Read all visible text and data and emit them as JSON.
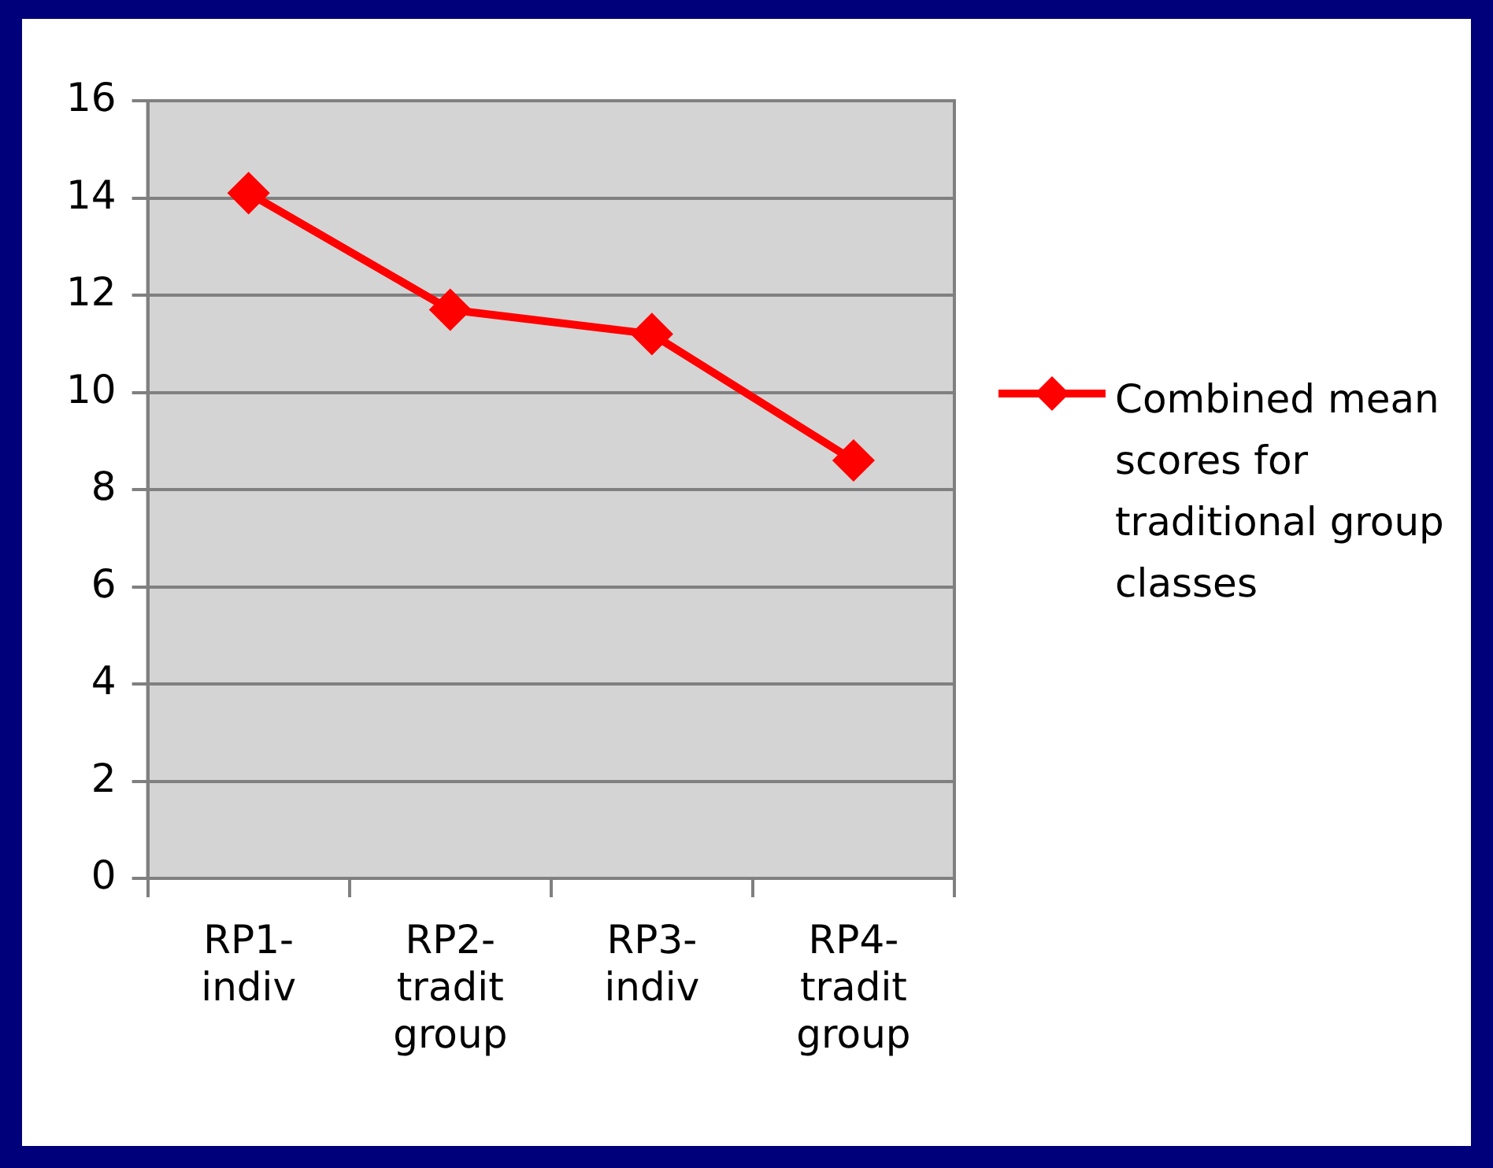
{
  "chart_data": {
    "type": "line",
    "categories": [
      "RP1-indiv",
      "RP2-tradit group",
      "RP3-indiv",
      "RP4-tradit group"
    ],
    "series": [
      {
        "name": "Combined mean scores for traditional group classes",
        "color": "#ff0000",
        "values": [
          14.1,
          11.7,
          11.2,
          8.6
        ]
      }
    ],
    "ylim": [
      0,
      16
    ],
    "yticks": [
      0,
      2,
      4,
      6,
      8,
      10,
      12,
      14,
      16
    ],
    "grid": "y",
    "legend": "right",
    "marker": "diamond",
    "line_style": "solid"
  }
}
